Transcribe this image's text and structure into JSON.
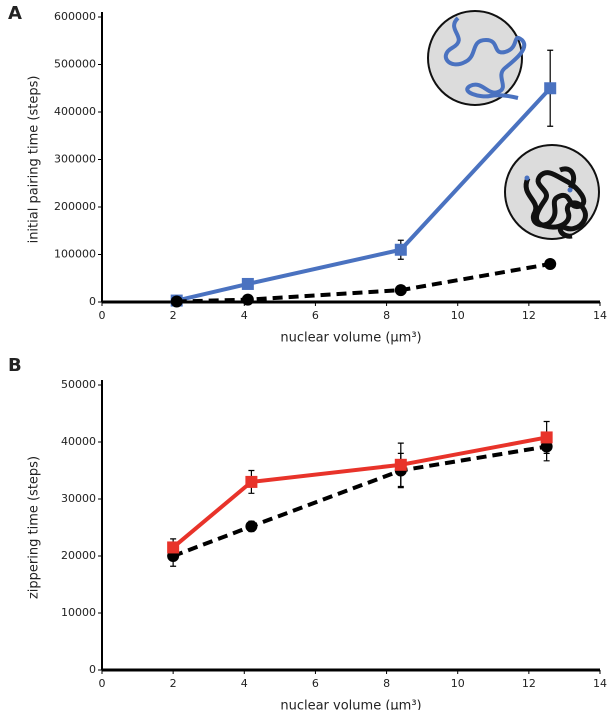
{
  "chart_data": [
    {
      "type": "line",
      "label": "A",
      "x_label": "nuclear volume (μm³)",
      "y_label": "initial pairing time (steps)",
      "xlim": [
        0,
        14
      ],
      "xticks": [
        0,
        2,
        4,
        6,
        8,
        10,
        12,
        14
      ],
      "ylim": [
        0,
        600000
      ],
      "yticks": [
        0,
        100000,
        200000,
        300000,
        400000,
        500000,
        600000
      ],
      "x": [
        2.1,
        4.1,
        8.4,
        12.6
      ],
      "series": [
        {
          "color": "#4a72c0",
          "marker": "square",
          "dashed": false,
          "values": [
            3000,
            38000,
            110000,
            450000
          ],
          "errors": [
            3000,
            5000,
            20000,
            80000
          ]
        },
        {
          "color": "#000000",
          "marker": "circle",
          "dashed": true,
          "values": [
            1000,
            5000,
            25000,
            80000
          ],
          "errors": [
            500,
            1000,
            3000,
            5000
          ]
        }
      ]
    },
    {
      "type": "line",
      "label": "B",
      "x_label": "nuclear volume (μm³)",
      "y_label": "zippering time (steps)",
      "xlim": [
        0,
        14
      ],
      "xticks": [
        0,
        2,
        4,
        6,
        8,
        10,
        12,
        14
      ],
      "ylim": [
        0,
        50000
      ],
      "yticks": [
        0,
        10000,
        20000,
        30000,
        40000,
        50000
      ],
      "x": [
        2.0,
        4.2,
        8.4,
        12.5
      ],
      "series": [
        {
          "color": "#000000",
          "marker": "circle",
          "dashed": true,
          "values": [
            20000,
            25200,
            35000,
            39200
          ],
          "errors": [
            1800,
            900,
            3000,
            2500
          ]
        },
        {
          "color": "#e8332a",
          "marker": "square",
          "dashed": false,
          "values": [
            21500,
            33000,
            36000,
            40800
          ],
          "errors": [
            1500,
            2000,
            3800,
            2800
          ]
        }
      ]
    }
  ]
}
